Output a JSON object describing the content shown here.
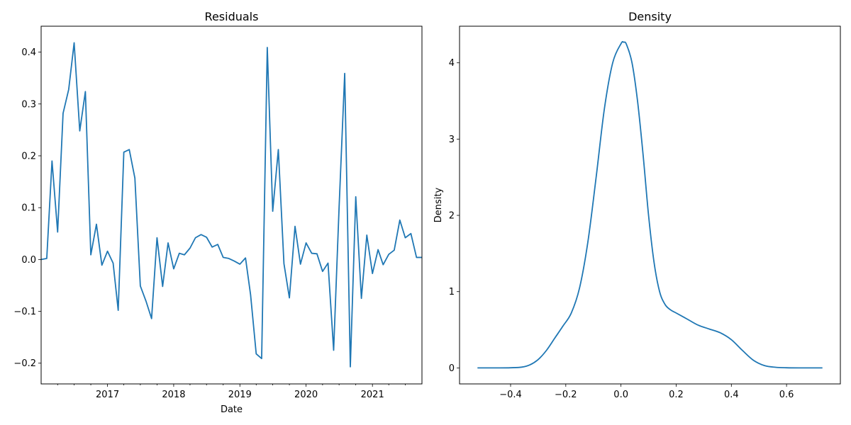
{
  "chart_data": [
    {
      "type": "line",
      "title": "Residuals",
      "xlabel": "Date",
      "ylabel": "",
      "grid": false,
      "legend": "none",
      "series_color": "#1f77b4",
      "xlim": [
        "2016-01-01",
        "2021-10-01"
      ],
      "ylim": [
        -0.24,
        0.45
      ],
      "xticks": [
        {
          "label": "2017",
          "date": "2017-01-01"
        },
        {
          "label": "2018",
          "date": "2018-01-01"
        },
        {
          "label": "2019",
          "date": "2019-01-01"
        },
        {
          "label": "2020",
          "date": "2020-01-01"
        },
        {
          "label": "2021",
          "date": "2021-01-01"
        }
      ],
      "yticks": [
        "-0.2",
        "-0.1",
        "0.0",
        "0.1",
        "0.2",
        "0.3",
        "0.4"
      ],
      "series": [
        {
          "x": [
            "2016-01",
            "2016-02",
            "2016-03",
            "2016-04",
            "2016-05",
            "2016-06",
            "2016-07",
            "2016-08",
            "2016-09",
            "2016-10",
            "2016-11",
            "2016-12",
            "2017-01",
            "2017-02",
            "2017-03",
            "2017-04",
            "2017-05",
            "2017-06",
            "2017-07",
            "2017-08",
            "2017-09",
            "2017-10",
            "2017-11",
            "2017-12",
            "2018-01",
            "2018-02",
            "2018-03",
            "2018-04",
            "2018-05",
            "2018-06",
            "2018-07",
            "2018-08",
            "2018-09",
            "2018-10",
            "2018-11",
            "2018-12",
            "2019-01",
            "2019-02",
            "2019-03",
            "2019-04",
            "2019-05",
            "2019-06",
            "2019-07",
            "2019-08",
            "2019-09",
            "2019-10",
            "2019-11",
            "2019-12",
            "2020-01",
            "2020-02",
            "2020-03",
            "2020-04",
            "2020-05",
            "2020-06",
            "2020-07",
            "2020-08",
            "2020-09",
            "2020-10",
            "2020-11",
            "2020-12",
            "2021-01",
            "2021-02",
            "2021-03",
            "2021-04",
            "2021-05",
            "2021-06",
            "2021-07",
            "2021-08",
            "2021-09",
            "2021-10"
          ],
          "y": [
            0.0,
            0.002,
            0.19,
            0.053,
            0.282,
            0.328,
            0.418,
            0.248,
            0.324,
            0.009,
            0.068,
            -0.011,
            0.016,
            -0.007,
            -0.098,
            0.207,
            0.212,
            0.157,
            -0.051,
            -0.08,
            -0.114,
            0.042,
            -0.052,
            0.032,
            -0.018,
            0.012,
            0.009,
            0.022,
            0.042,
            0.048,
            0.043,
            0.024,
            0.029,
            0.004,
            0.002,
            -0.003,
            -0.009,
            0.003,
            -0.068,
            -0.182,
            -0.191,
            0.409,
            0.093,
            0.212,
            -0.008,
            -0.074,
            0.064,
            -0.009,
            0.032,
            0.012,
            0.011,
            -0.023,
            -0.007,
            -0.175,
            0.1,
            0.359,
            -0.207,
            0.121,
            -0.075,
            0.047,
            -0.027,
            0.019,
            -0.01,
            0.01,
            0.018,
            0.076,
            0.042,
            0.05,
            0.004,
            0.004
          ]
        }
      ]
    },
    {
      "type": "line",
      "title": "Density",
      "xlabel": "",
      "ylabel": "Density",
      "grid": false,
      "legend": "none",
      "series_color": "#1f77b4",
      "xlim": [
        -0.585,
        0.795
      ],
      "ylim": [
        -0.21,
        4.48
      ],
      "xticks": [
        "−0.4",
        "−0.2",
        "0.0",
        "0.2",
        "0.4",
        "0.6"
      ],
      "xtick_values": [
        -0.4,
        -0.2,
        0.0,
        0.2,
        0.4,
        0.6
      ],
      "yticks": [
        "0",
        "1",
        "2",
        "3",
        "4"
      ],
      "series": [
        {
          "x": [
            -0.52,
            -0.45,
            -0.4,
            -0.36,
            -0.33,
            -0.3,
            -0.27,
            -0.24,
            -0.21,
            -0.18,
            -0.15,
            -0.12,
            -0.09,
            -0.06,
            -0.03,
            0.0,
            0.01,
            0.02,
            0.04,
            0.06,
            0.08,
            0.1,
            0.12,
            0.14,
            0.16,
            0.18,
            0.2,
            0.24,
            0.28,
            0.32,
            0.36,
            0.4,
            0.44,
            0.48,
            0.52,
            0.56,
            0.6,
            0.66,
            0.73
          ],
          "y": [
            0.0,
            0.0,
            0.002,
            0.01,
            0.04,
            0.11,
            0.23,
            0.39,
            0.55,
            0.72,
            1.05,
            1.65,
            2.5,
            3.4,
            4.0,
            4.25,
            4.27,
            4.24,
            4.0,
            3.5,
            2.8,
            2.0,
            1.38,
            1.0,
            0.83,
            0.76,
            0.72,
            0.64,
            0.56,
            0.51,
            0.46,
            0.37,
            0.23,
            0.1,
            0.03,
            0.008,
            0.002,
            0.0,
            0.0
          ]
        }
      ]
    }
  ]
}
